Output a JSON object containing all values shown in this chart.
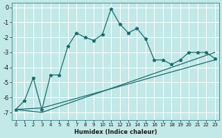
{
  "xlabel": "Humidex (Indice chaleur)",
  "background_color": "#c2e8e8",
  "grid_color": "#ffffff",
  "line_color": "#1a6b6b",
  "xlim": [
    -0.5,
    23.5
  ],
  "ylim": [
    -7.5,
    0.3
  ],
  "x_ticks": [
    0,
    1,
    2,
    3,
    4,
    5,
    6,
    7,
    8,
    9,
    10,
    11,
    12,
    13,
    14,
    15,
    16,
    17,
    18,
    19,
    20,
    21,
    22,
    23
  ],
  "y_ticks": [
    0,
    -1,
    -2,
    -3,
    -4,
    -5,
    -6,
    -7
  ],
  "curve_x": [
    0,
    1,
    2,
    3,
    4,
    5,
    6,
    7,
    8,
    9,
    10,
    11,
    12,
    13,
    14,
    15,
    16,
    17,
    18,
    19,
    20,
    21,
    22,
    23
  ],
  "curve_y": [
    -6.8,
    -6.2,
    -4.7,
    -6.8,
    -4.5,
    -4.5,
    -2.6,
    -1.7,
    -2.0,
    -2.2,
    -1.8,
    -0.1,
    -1.1,
    -1.7,
    -1.4,
    -2.1,
    -3.5,
    -3.5,
    -3.8,
    -3.5,
    -3.0,
    -3.0,
    -3.0,
    -3.4
  ],
  "line1_x": [
    0,
    3,
    23
  ],
  "line1_y": [
    -6.8,
    -7.0,
    -3.0
  ],
  "line2_x": [
    0,
    3,
    23
  ],
  "line2_y": [
    -6.8,
    -6.7,
    -3.5
  ]
}
